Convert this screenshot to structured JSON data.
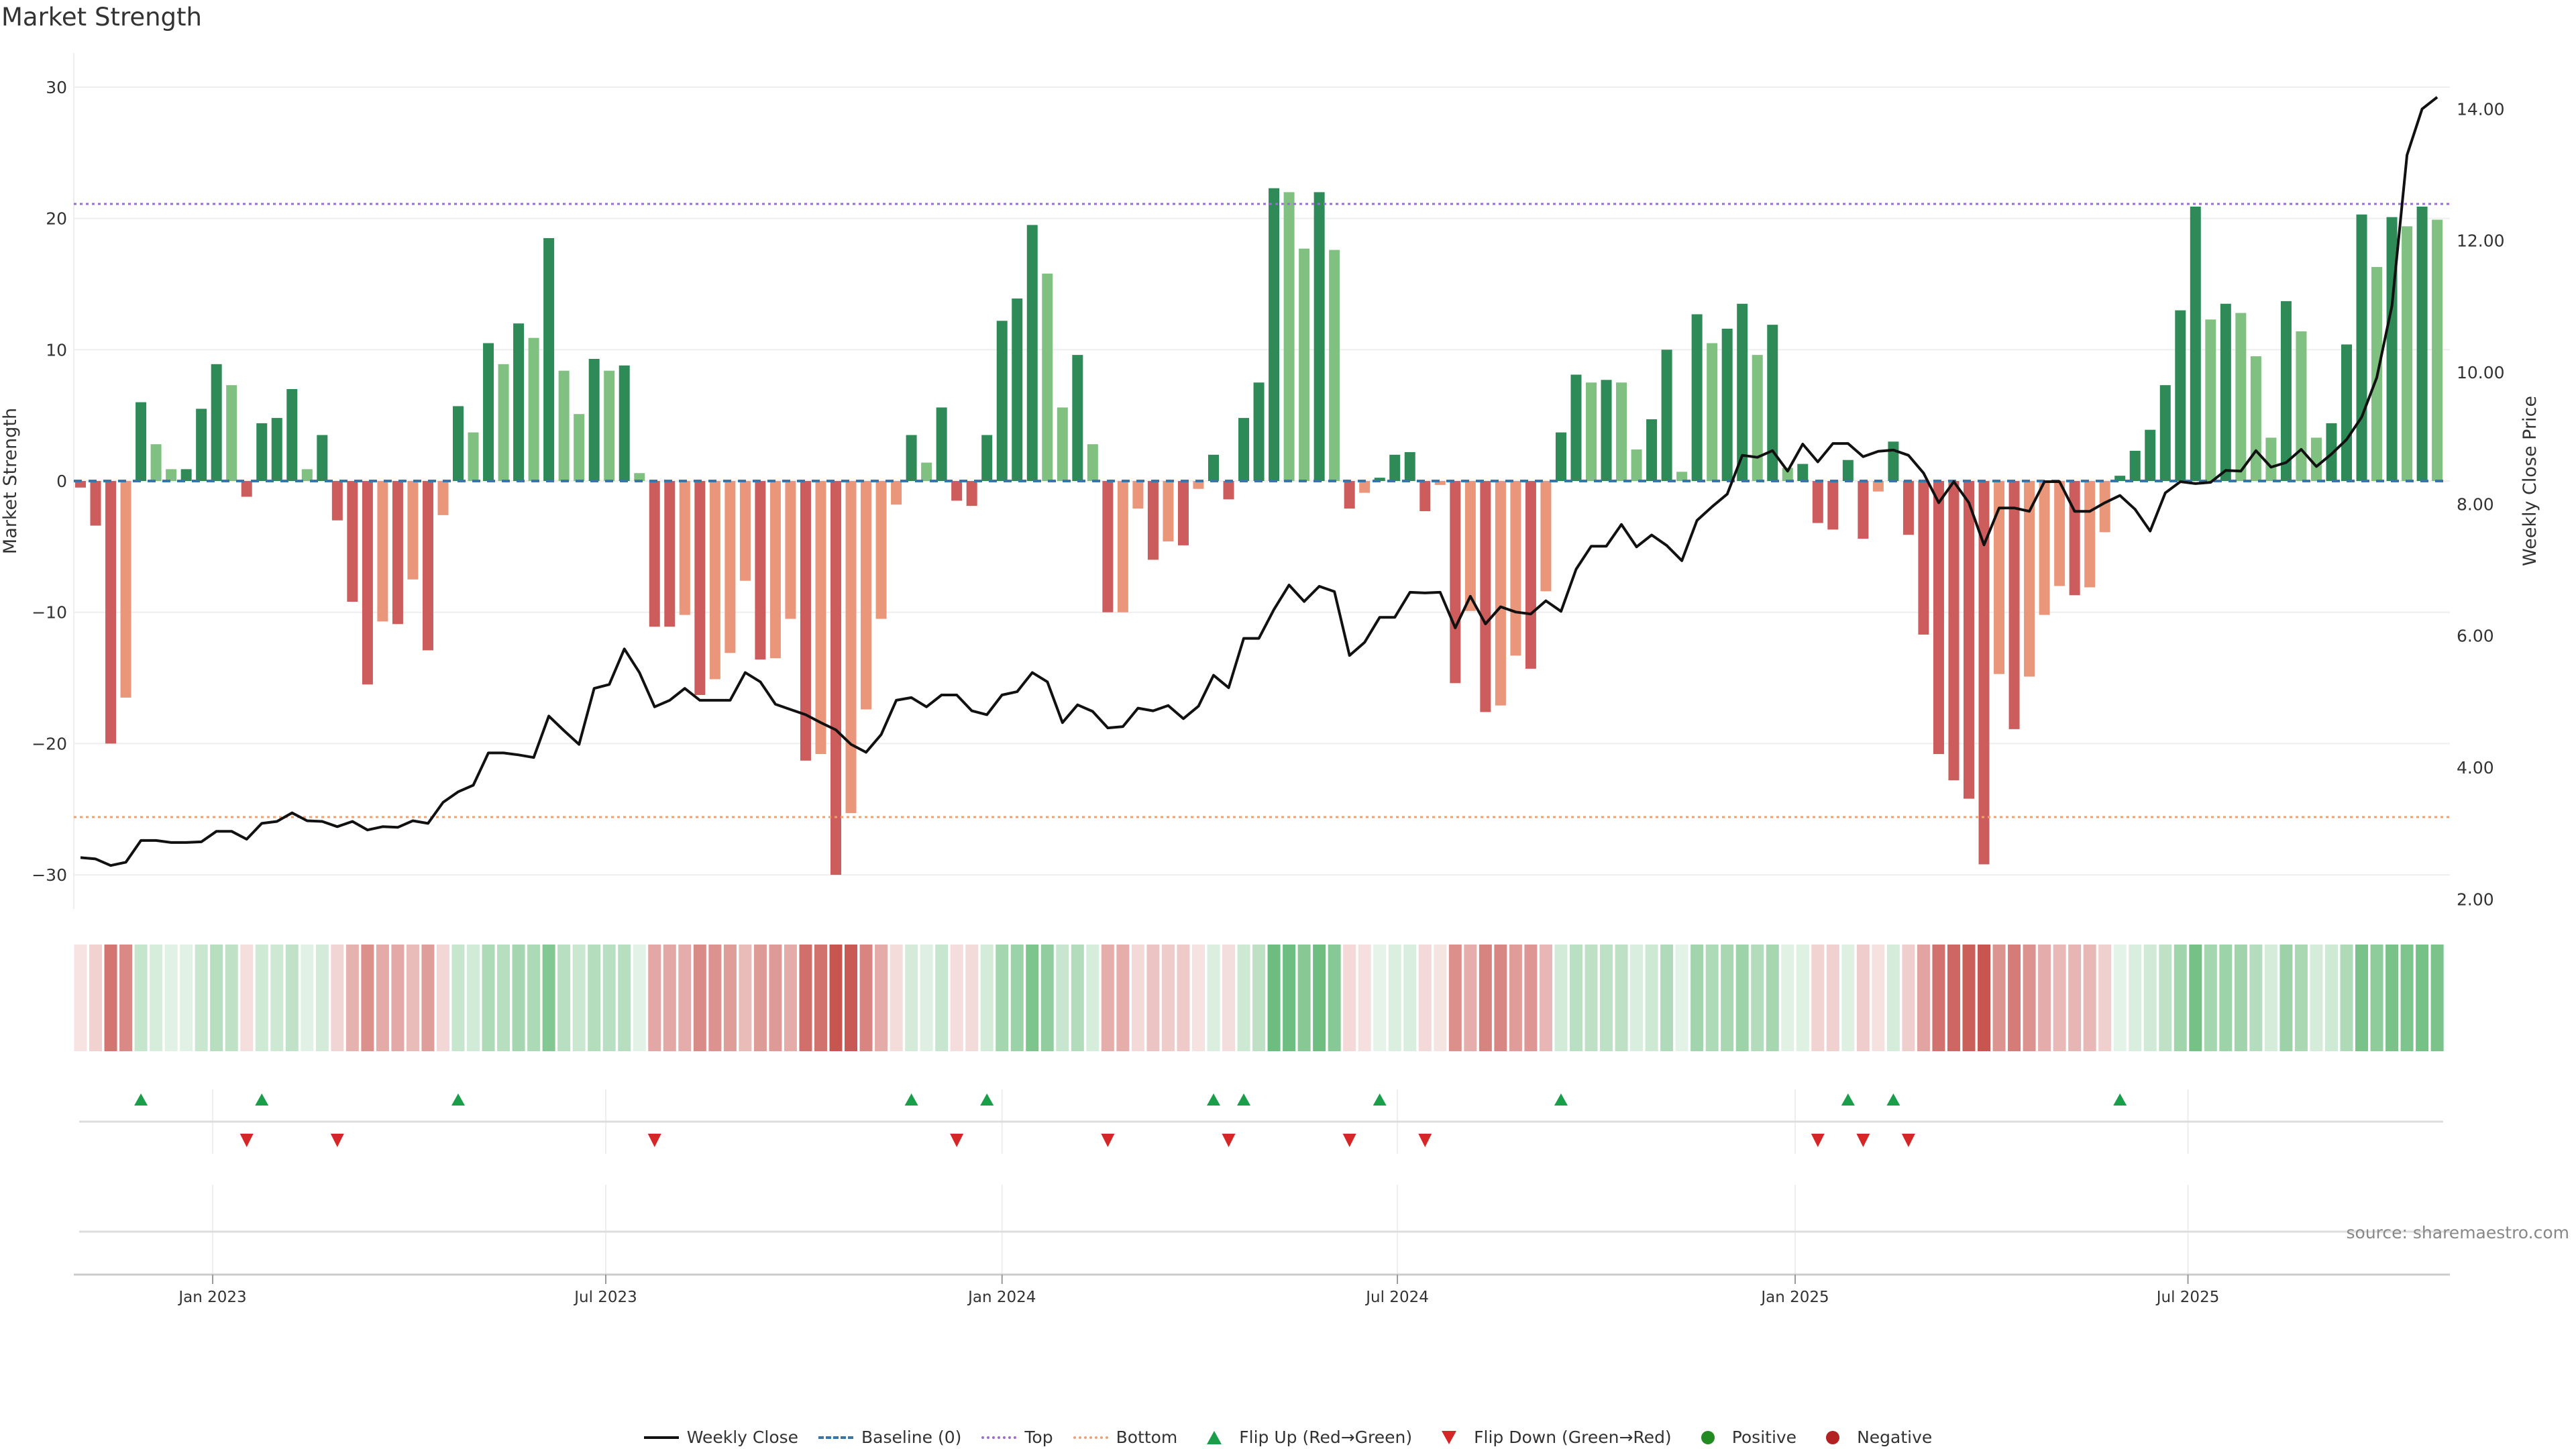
{
  "title": "Market Strength",
  "source": "source: sharemaestro.com",
  "legend": [
    {
      "label": "Weekly Close",
      "kind": "line",
      "color": "#111111"
    },
    {
      "label": "Baseline (0)",
      "kind": "dash",
      "color": "#3a75a8"
    },
    {
      "label": "Top",
      "kind": "dot-line",
      "color": "#9b6bd6"
    },
    {
      "label": "Bottom",
      "kind": "dot-line",
      "color": "#f0a070"
    },
    {
      "label": "Flip Up (Red→Green)",
      "kind": "tri-up",
      "color": "#1a9e4a"
    },
    {
      "label": "Flip Down (Green→Red)",
      "kind": "tri-dn",
      "color": "#d62728"
    },
    {
      "label": "Positive",
      "kind": "dot",
      "color": "#228b22"
    },
    {
      "label": "Negative",
      "kind": "dot",
      "color": "#b22222"
    }
  ],
  "colors": {
    "strong_pos": "#2e8b57",
    "weak_pos": "#80c080",
    "strong_neg": "#cd5c5c",
    "weak_neg": "#e9967a",
    "line": "#111111",
    "top": "#9b6bd6",
    "bottom": "#f0a070",
    "baseline": "#3a75a8",
    "flip_up": "#1a9e4a",
    "flip_down": "#d62728"
  },
  "chart_data": {
    "type": "bar",
    "title": "Market Strength",
    "ylabel": "Market Strength",
    "ylabel_right": "Weekly Close Price",
    "ylim": [
      -32.6,
      32.6
    ],
    "ylim_right": [
      1.85,
      14.85
    ],
    "yticks": [
      "30",
      "20",
      "10",
      "0",
      "−10",
      "−20",
      "−30"
    ],
    "yticks_values": [
      30,
      20,
      10,
      0,
      -10,
      -20,
      -30
    ],
    "yticks_right": [
      "14.00",
      "12.00",
      "10.00",
      "8.00",
      "6.00",
      "4.00",
      "2.00"
    ],
    "yticks_right_values": [
      14,
      12,
      10,
      8,
      6,
      4,
      2
    ],
    "xticks": [
      {
        "label": "Jan 2023",
        "week": 8.75
      },
      {
        "label": "Jul 2023",
        "week": 34.77
      },
      {
        "label": "Jan 2024",
        "week": 61.0
      },
      {
        "label": "Jul 2024",
        "week": 87.17
      },
      {
        "label": "Jan 2025",
        "week": 113.5
      },
      {
        "label": "Jul 2025",
        "week": 139.5
      }
    ],
    "top_level": 21.1,
    "bottom_level": -25.6,
    "baseline": 0,
    "strength": [
      -0.5,
      -3.4,
      -20,
      -16.5,
      6,
      2.8,
      0.9,
      0.9,
      5.5,
      8.9,
      7.3,
      -1.2,
      4.4,
      4.8,
      7,
      0.9,
      3.5,
      -3,
      -9.2,
      -15.5,
      -10.7,
      -10.9,
      -7.5,
      -12.9,
      -2.6,
      5.7,
      3.7,
      10.5,
      8.9,
      12,
      10.9,
      18.5,
      8.4,
      5.1,
      9.3,
      8.4,
      8.8,
      0.6,
      -11.1,
      -11.1,
      -10.2,
      -16.3,
      -15.1,
      -13.1,
      -7.6,
      -13.6,
      -13.5,
      -10.5,
      -21.3,
      -20.8,
      -30,
      -25.3,
      -17.4,
      -10.5,
      -1.8,
      3.5,
      1.4,
      5.6,
      -1.5,
      -1.9,
      3.5,
      12.2,
      13.9,
      19.5,
      15.8,
      5.6,
      9.6,
      2.8,
      -10,
      -10,
      -2.1,
      -6,
      -4.6,
      -4.9,
      -0.6,
      2,
      -1.4,
      4.8,
      7.5,
      22.3,
      22,
      17.7,
      22,
      17.6,
      -2.1,
      -0.9,
      0.25,
      2,
      2.2,
      -2.3,
      -0.3,
      -15.4,
      -9.9,
      -17.6,
      -17.1,
      -13.3,
      -14.3,
      -8.4,
      3.7,
      8.1,
      7.5,
      7.7,
      7.5,
      2.4,
      4.7,
      10,
      0.7,
      12.7,
      10.5,
      11.6,
      13.5,
      9.6,
      11.9,
      1,
      1.3,
      -3.2,
      -3.7,
      1.6,
      -4.4,
      -0.8,
      3,
      -4.1,
      -11.7,
      -20.8,
      -22.8,
      -24.2,
      -29.2,
      -14.7,
      -18.9,
      -14.9,
      -10.2,
      -8,
      -8.7,
      -8.1,
      -3.9,
      0.4,
      2.3,
      3.9,
      7.3,
      13,
      20.9,
      12.3,
      13.5,
      12.8,
      9.5,
      3.3,
      13.7,
      11.4,
      3.3,
      4.4,
      10.4,
      20.3,
      16.3,
      20.1,
      19.4,
      20.9,
      19.9
    ],
    "bar_tone": [
      "R",
      "R",
      "R",
      "S",
      "D",
      "L",
      "L",
      "D",
      "D",
      "D",
      "L",
      "R",
      "D",
      "D",
      "D",
      "L",
      "D",
      "R",
      "R",
      "R",
      "S",
      "R",
      "S",
      "R",
      "S",
      "D",
      "L",
      "D",
      "L",
      "D",
      "L",
      "D",
      "L",
      "L",
      "D",
      "L",
      "D",
      "L",
      "R",
      "R",
      "S",
      "R",
      "S",
      "S",
      "S",
      "R",
      "S",
      "S",
      "R",
      "S",
      "R",
      "S",
      "S",
      "S",
      "S",
      "D",
      "L",
      "D",
      "R",
      "R",
      "D",
      "D",
      "D",
      "D",
      "L",
      "L",
      "D",
      "L",
      "R",
      "S",
      "S",
      "R",
      "S",
      "R",
      "S",
      "D",
      "R",
      "D",
      "D",
      "D",
      "L",
      "L",
      "D",
      "L",
      "R",
      "S",
      "D",
      "D",
      "D",
      "R",
      "S",
      "R",
      "S",
      "R",
      "S",
      "S",
      "R",
      "S",
      "D",
      "D",
      "L",
      "D",
      "L",
      "L",
      "D",
      "D",
      "L",
      "D",
      "L",
      "D",
      "D",
      "L",
      "D",
      "L",
      "D",
      "R",
      "R",
      "D",
      "R",
      "S",
      "D",
      "R",
      "R",
      "R",
      "R",
      "R",
      "R",
      "S",
      "R",
      "S",
      "S",
      "S",
      "R",
      "S",
      "S",
      "D",
      "D",
      "D",
      "D",
      "D",
      "D",
      "L",
      "D",
      "L",
      "L",
      "L",
      "D",
      "L",
      "L",
      "D",
      "D",
      "D",
      "L",
      "D",
      "L",
      "D",
      "L"
    ],
    "weekly_close": [
      2.63,
      2.61,
      2.51,
      2.56,
      2.89,
      2.89,
      2.86,
      2.86,
      2.87,
      3.03,
      3.03,
      2.91,
      3.15,
      3.18,
      3.31,
      3.19,
      3.18,
      3.1,
      3.18,
      3.05,
      3.1,
      3.09,
      3.19,
      3.15,
      3.47,
      3.63,
      3.73,
      4.22,
      4.22,
      4.19,
      4.15,
      4.78,
      4.56,
      4.35,
      5.2,
      5.26,
      5.8,
      5.44,
      4.92,
      5.02,
      5.2,
      5.02,
      5.02,
      5.02,
      5.44,
      5.3,
      4.96,
      4.88,
      4.8,
      4.68,
      4.57,
      4.35,
      4.23,
      4.5,
      5.02,
      5.06,
      4.92,
      5.1,
      5.1,
      4.86,
      4.8,
      5.1,
      5.15,
      5.44,
      5.3,
      4.68,
      4.95,
      4.85,
      4.6,
      4.62,
      4.9,
      4.86,
      4.94,
      4.74,
      4.93,
      5.4,
      5.21,
      5.96,
      5.96,
      6.4,
      6.77,
      6.52,
      6.75,
      6.67,
      5.7,
      5.9,
      6.28,
      6.28,
      6.66,
      6.65,
      6.66,
      6.12,
      6.6,
      6.18,
      6.44,
      6.36,
      6.33,
      6.53,
      6.37,
      7.01,
      7.36,
      7.36,
      7.69,
      7.35,
      7.53,
      7.37,
      7.14,
      7.75,
      7.96,
      8.15,
      8.74,
      8.71,
      8.81,
      8.5,
      8.91,
      8.64,
      8.92,
      8.92,
      8.72,
      8.8,
      8.82,
      8.74,
      8.47,
      8.02,
      8.34,
      8.02,
      7.38,
      7.94,
      7.94,
      7.89,
      8.34,
      8.34,
      7.89,
      7.89,
      8.02,
      8.13,
      7.92,
      7.59,
      8.17,
      8.34,
      8.31,
      8.33,
      8.51,
      8.5,
      8.81,
      8.56,
      8.63,
      8.83,
      8.57,
      8.76,
      8.98,
      9.32,
      9.92,
      11.01,
      13.3,
      14.0,
      14.18
    ],
    "flip_up_weeks": [
      4,
      12,
      25,
      55,
      60,
      75,
      77,
      86,
      98,
      117,
      120,
      135
    ],
    "flip_down_weeks": [
      11,
      17,
      38,
      58,
      68,
      76,
      84,
      89,
      115,
      118,
      121
    ]
  }
}
